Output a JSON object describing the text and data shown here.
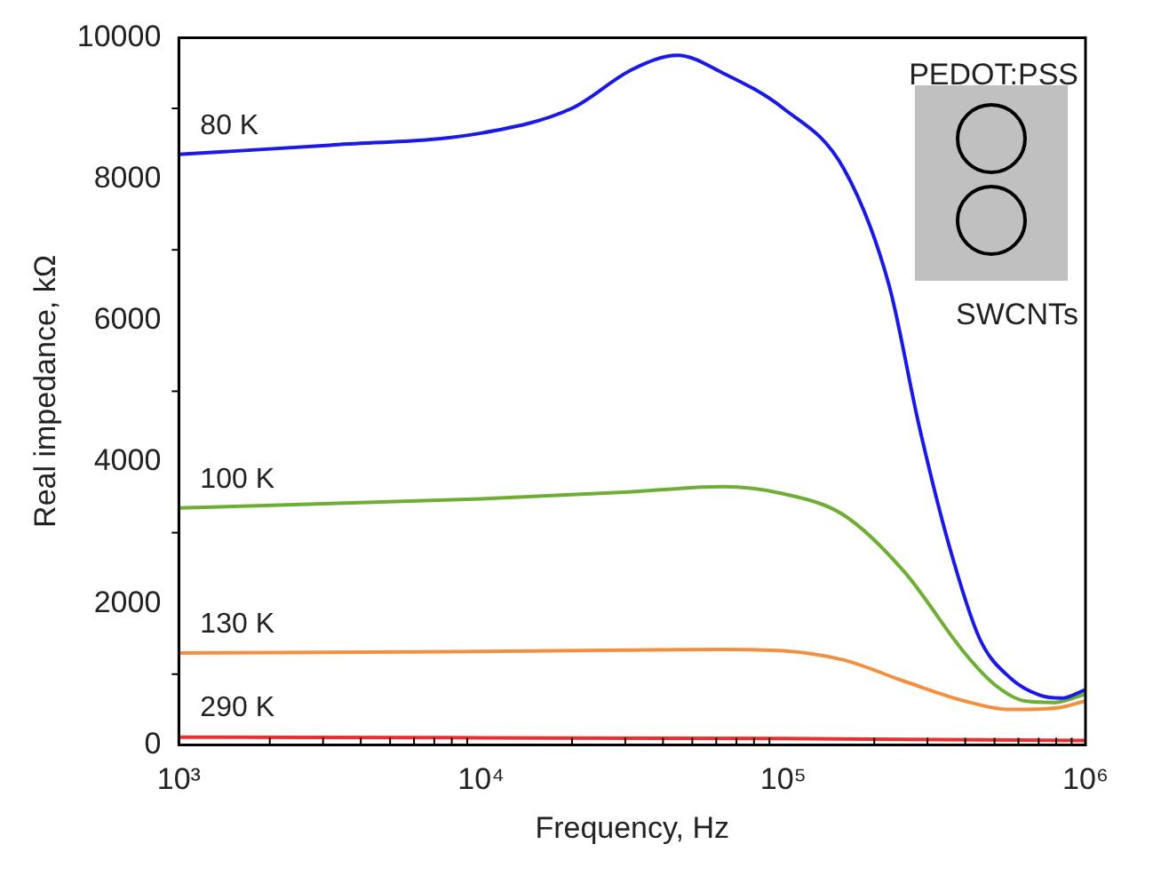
{
  "chart_data": {
    "type": "line",
    "xlabel": "Frequency, Hz",
    "ylabel": "Real impedance, kΩ",
    "log": "x",
    "xlim": [
      1000,
      1000000
    ],
    "xticks": [
      {
        "value": 1000,
        "label": "10³"
      },
      {
        "value": 10000,
        "label": "10⁴"
      },
      {
        "value": 100000,
        "label": "10⁵"
      },
      {
        "value": 1000000,
        "label": "10⁶"
      }
    ],
    "ylim": [
      0,
      10000
    ],
    "yticks": [
      0,
      2000,
      4000,
      6000,
      8000,
      10000
    ],
    "grid": false,
    "legend": false,
    "marker": "none",
    "line_style": "solid",
    "annotations": [
      "PEDOT:PSS",
      "SWCNTs"
    ],
    "series": [
      {
        "name": "80 K",
        "color": "#1a1ae6",
        "x": [
          1000,
          3162,
          10000,
          19953,
          31623,
          44668,
          63096,
          100000,
          158489,
          223872,
          281838,
          354813,
          446684,
          562341,
          707946,
          831764,
          1000000
        ],
        "values": [
          8350,
          8480,
          8650,
          9000,
          9550,
          9750,
          9500,
          9000,
          8150,
          6500,
          4500,
          2800,
          1500,
          950,
          700,
          660,
          780
        ]
      },
      {
        "name": "100 K",
        "color": "#6eae34",
        "x": [
          1000,
          10000,
          31623,
          63096,
          100000,
          158489,
          251189,
          398107,
          501187,
          630957,
          794328,
          1000000
        ],
        "values": [
          3350,
          3480,
          3580,
          3650,
          3550,
          3250,
          2450,
          1300,
          850,
          620,
          600,
          720
        ]
      },
      {
        "name": "130 K",
        "color": "#f39040",
        "x": [
          1000,
          10000,
          63096,
          100000,
          158489,
          251189,
          398107,
          562341,
          794328,
          1000000
        ],
        "values": [
          1300,
          1320,
          1350,
          1330,
          1200,
          900,
          620,
          500,
          520,
          620
        ]
      },
      {
        "name": "290 K",
        "color": "#e83030",
        "x": [
          1000,
          10000,
          100000,
          1000000
        ],
        "values": [
          110,
          100,
          90,
          60
        ]
      }
    ]
  }
}
